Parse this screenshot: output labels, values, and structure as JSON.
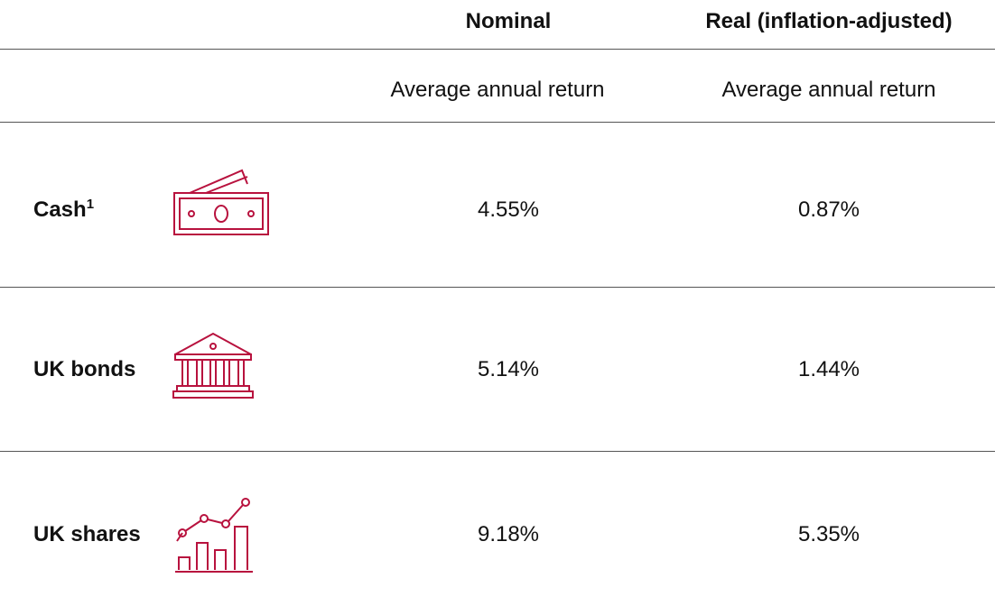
{
  "table": {
    "headers": [
      "Nominal",
      "Real (inflation-adjusted)"
    ],
    "subheaders": [
      "Average annual return",
      "Average annual return"
    ],
    "rows": [
      {
        "label": "Cash",
        "footnote": "1",
        "values": [
          "4.55%",
          "0.87%"
        ]
      },
      {
        "label": "UK bonds",
        "values": [
          "5.14%",
          "1.44%"
        ]
      },
      {
        "label": "UK shares",
        "values": [
          "9.18%",
          "5.35%"
        ]
      }
    ]
  }
}
